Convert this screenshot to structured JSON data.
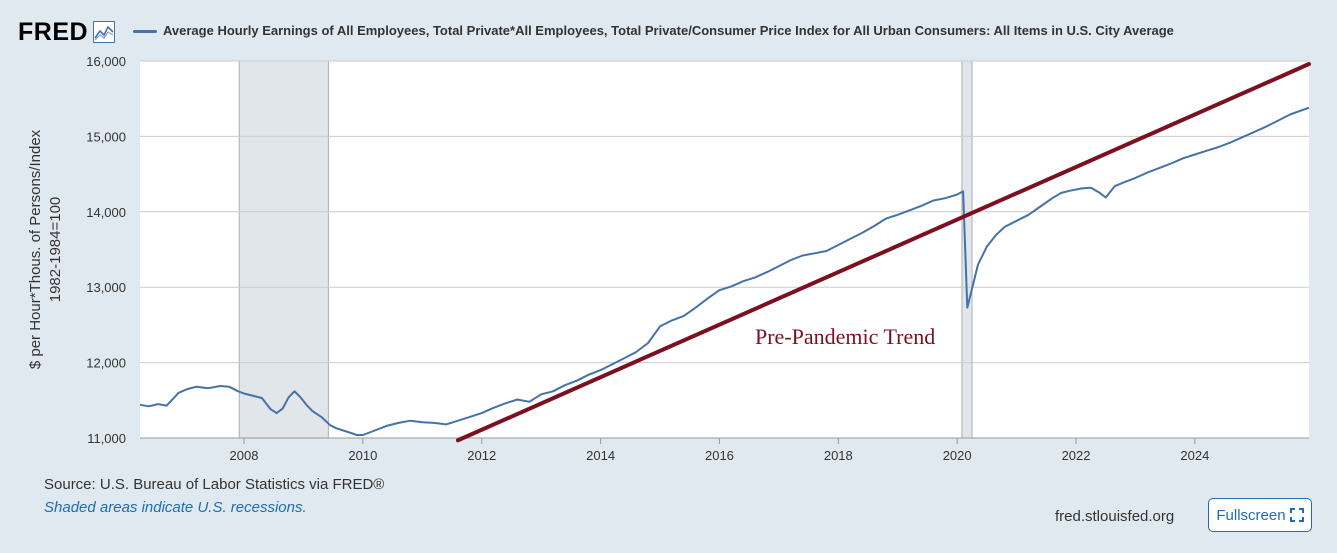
{
  "header": {
    "logo_text": "FRED",
    "series_label": "Average Hourly Earnings of All Employees, Total Private*All Employees, Total Private/Consumer Price Index for All Urban Consumers: All Items in U.S. City Average"
  },
  "footer": {
    "source": "Source: U.S. Bureau of Labor Statistics via FRED®",
    "recession_note": "Shaded areas indicate U.S. recessions.",
    "site": "fred.stlouisfed.org",
    "fullscreen_label": "Fullscreen"
  },
  "colors": {
    "series": "#4572a7",
    "trend": "#7b1020",
    "recession": "#e1e6ea",
    "grid": "#cccccc"
  },
  "chart_data": {
    "type": "line",
    "title": "Average Hourly Earnings of All Employees, Total Private*All Employees, Total Private/Consumer Price Index for All Urban Consumers: All Items in U.S. City Average",
    "xlabel": "",
    "ylabel": "$ per Hour*Thous. of Persons/Index 1982-1984=100",
    "ylabel_lines": [
      "$ per Hour*Thous. of Persons/Index",
      "1982-1984=100"
    ],
    "xlim": [
      2006.25,
      2025.92
    ],
    "ylim": [
      11000,
      16000
    ],
    "x_ticks": [
      2008,
      2010,
      2012,
      2014,
      2016,
      2018,
      2020,
      2022,
      2024
    ],
    "x_tick_labels": [
      "2008",
      "2010",
      "2012",
      "2014",
      "2016",
      "2018",
      "2020",
      "2022",
      "2024"
    ],
    "y_ticks": [
      11000,
      12000,
      13000,
      14000,
      15000,
      16000
    ],
    "y_tick_labels": [
      "11,000",
      "12,000",
      "13,000",
      "14,000",
      "15,000",
      "16,000"
    ],
    "grid": true,
    "recessions": [
      [
        2007.92,
        2009.42
      ],
      [
        2020.08,
        2020.25
      ]
    ],
    "series": [
      {
        "name": "Average Hourly Earnings of All Employees, Total Private*All Employees, Total Private/Consumer Price Index for All Urban Consumers: All Items in U.S. City Average",
        "x": [
          2006.25,
          2006.4,
          2006.55,
          2006.7,
          2006.9,
          2007.05,
          2007.2,
          2007.4,
          2007.6,
          2007.75,
          2007.9,
          2008.0,
          2008.1,
          2008.3,
          2008.45,
          2008.55,
          2008.65,
          2008.75,
          2008.85,
          2008.95,
          2009.05,
          2009.15,
          2009.3,
          2009.45,
          2009.55,
          2009.75,
          2009.9,
          2010.0,
          2010.2,
          2010.4,
          2010.6,
          2010.8,
          2011.0,
          2011.2,
          2011.4,
          2011.6,
          2011.8,
          2012.0,
          2012.2,
          2012.4,
          2012.6,
          2012.8,
          2013.0,
          2013.2,
          2013.4,
          2013.6,
          2013.8,
          2014.0,
          2014.2,
          2014.4,
          2014.6,
          2014.8,
          2015.0,
          2015.2,
          2015.4,
          2015.6,
          2015.8,
          2016.0,
          2016.2,
          2016.4,
          2016.6,
          2016.8,
          2017.0,
          2017.2,
          2017.4,
          2017.6,
          2017.8,
          2018.0,
          2018.2,
          2018.4,
          2018.6,
          2018.8,
          2019.0,
          2019.2,
          2019.4,
          2019.6,
          2019.8,
          2020.0,
          2020.1,
          2020.17,
          2020.25,
          2020.35,
          2020.5,
          2020.65,
          2020.8,
          2021.0,
          2021.2,
          2021.4,
          2021.6,
          2021.75,
          2021.9,
          2022.1,
          2022.25,
          2022.4,
          2022.5,
          2022.65,
          2022.8,
          2023.0,
          2023.2,
          2023.4,
          2023.6,
          2023.8,
          2024.0,
          2024.2,
          2024.4,
          2024.6,
          2024.8,
          2025.0,
          2025.2,
          2025.4,
          2025.6,
          2025.92
        ],
        "values": [
          11440,
          11420,
          11450,
          11430,
          11600,
          11650,
          11680,
          11660,
          11690,
          11680,
          11620,
          11590,
          11570,
          11530,
          11380,
          11330,
          11390,
          11540,
          11620,
          11540,
          11440,
          11360,
          11280,
          11170,
          11130,
          11080,
          11040,
          11040,
          11100,
          11160,
          11200,
          11230,
          11210,
          11200,
          11180,
          11230,
          11280,
          11330,
          11400,
          11460,
          11510,
          11480,
          11580,
          11620,
          11700,
          11760,
          11840,
          11900,
          11980,
          12060,
          12140,
          12260,
          12480,
          12560,
          12620,
          12730,
          12850,
          12960,
          13010,
          13080,
          13130,
          13200,
          13280,
          13360,
          13420,
          13450,
          13480,
          13560,
          13640,
          13720,
          13810,
          13910,
          13960,
          14020,
          14080,
          14150,
          14180,
          14230,
          14270,
          12730,
          12980,
          13300,
          13540,
          13690,
          13800,
          13880,
          13960,
          14070,
          14180,
          14250,
          14280,
          14310,
          14320,
          14250,
          14190,
          14340,
          14390,
          14450,
          14520,
          14580,
          14640,
          14710,
          14760,
          14810,
          14860,
          14920,
          14990,
          15060,
          15130,
          15210,
          15290,
          15380
        ]
      }
    ],
    "trend_line": {
      "label": "Pre-Pandemic Trend",
      "x": [
        2011.6,
        2025.92
      ],
      "values": [
        10970,
        15960
      ]
    }
  }
}
